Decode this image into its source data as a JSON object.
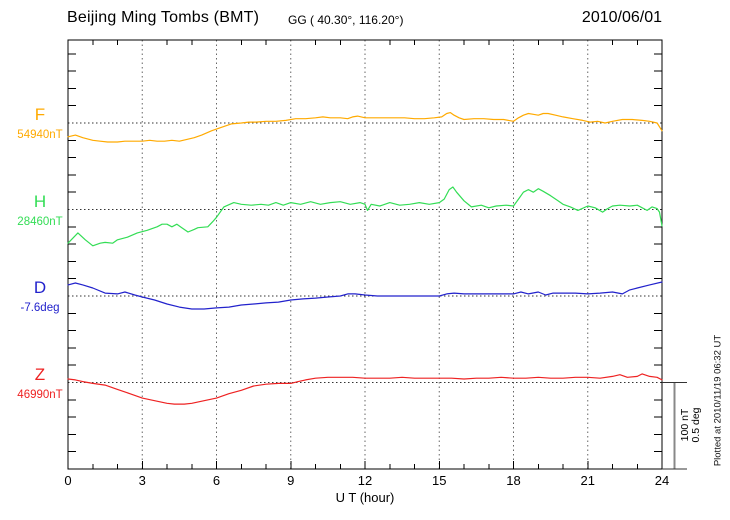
{
  "header": {
    "station_title": "Beijing Ming Tombs (BMT)",
    "coordinates": "GG ( 40.30°, 116.20°)",
    "date": "2010/06/01"
  },
  "chart_data": {
    "type": "line",
    "title": "Beijing Ming Tombs (BMT) magnetogram 2010/06/01",
    "xlabel": "U T (hour)",
    "x_range": [
      0,
      24
    ],
    "x_ticks": [
      0,
      3,
      6,
      9,
      12,
      15,
      18,
      21,
      24
    ],
    "grid": "dotted vertical lines every 3 h; dotted horizontal baseline at each component reference value",
    "legend_position": "left margin, one colored label per trace",
    "scale_bar": {
      "nT_label": "100 nT",
      "deg_label": "0.5 deg",
      "nT_per_bar": 100,
      "deg_per_bar": 0.5
    },
    "plotted_note": "Plotted at 2010/11/19 06:32 UT",
    "series": [
      {
        "name": "F",
        "label": "F",
        "ref_label": "54940nT",
        "ref_value": 54940,
        "unit": "nT",
        "color": "#FFAA00",
        "points": [
          [
            0,
            -16
          ],
          [
            0.3,
            -14
          ],
          [
            0.6,
            -17
          ],
          [
            1,
            -20
          ],
          [
            1.3,
            -21
          ],
          [
            1.6,
            -22
          ],
          [
            2,
            -22
          ],
          [
            2.3,
            -21
          ],
          [
            2.6,
            -21
          ],
          [
            3,
            -21
          ],
          [
            3.3,
            -20
          ],
          [
            3.6,
            -21
          ],
          [
            3.9,
            -21
          ],
          [
            4.2,
            -20
          ],
          [
            4.5,
            -21
          ],
          [
            4.8,
            -19
          ],
          [
            5.1,
            -17
          ],
          [
            5.4,
            -14
          ],
          [
            5.8,
            -9
          ],
          [
            6.2,
            -5
          ],
          [
            6.6,
            -1
          ],
          [
            7,
            0
          ],
          [
            7.3,
            1
          ],
          [
            7.6,
            1
          ],
          [
            8,
            2
          ],
          [
            8.4,
            2
          ],
          [
            8.8,
            3
          ],
          [
            9.2,
            5
          ],
          [
            9.6,
            5
          ],
          [
            10,
            6
          ],
          [
            10.3,
            7
          ],
          [
            10.6,
            6
          ],
          [
            11,
            6
          ],
          [
            11.3,
            5
          ],
          [
            11.5,
            7
          ],
          [
            11.7,
            8
          ],
          [
            12,
            6
          ],
          [
            12.4,
            6
          ],
          [
            12.8,
            6
          ],
          [
            13.2,
            6
          ],
          [
            13.6,
            6
          ],
          [
            14,
            5
          ],
          [
            14.4,
            5
          ],
          [
            14.8,
            6
          ],
          [
            15.1,
            7
          ],
          [
            15.3,
            11
          ],
          [
            15.45,
            12
          ],
          [
            15.6,
            9
          ],
          [
            15.8,
            6
          ],
          [
            16,
            4
          ],
          [
            16.4,
            5
          ],
          [
            16.8,
            5
          ],
          [
            17.2,
            4
          ],
          [
            17.6,
            4
          ],
          [
            18,
            2
          ],
          [
            18.2,
            6
          ],
          [
            18.4,
            9
          ],
          [
            18.6,
            11
          ],
          [
            18.8,
            10
          ],
          [
            19,
            9
          ],
          [
            19.2,
            11
          ],
          [
            19.4,
            11
          ],
          [
            19.7,
            9
          ],
          [
            20,
            7
          ],
          [
            20.4,
            5
          ],
          [
            20.8,
            3
          ],
          [
            21.1,
            1
          ],
          [
            21.4,
            2
          ],
          [
            21.7,
            0
          ],
          [
            22,
            2
          ],
          [
            22.4,
            4
          ],
          [
            22.8,
            4
          ],
          [
            23.2,
            3
          ],
          [
            23.5,
            2
          ],
          [
            23.8,
            0
          ],
          [
            24,
            -9
          ]
        ]
      },
      {
        "name": "H",
        "label": "H",
        "ref_label": "28460nT",
        "ref_value": 28460,
        "unit": "nT",
        "color": "#33DD55",
        "points": [
          [
            0,
            -39
          ],
          [
            0.4,
            -27
          ],
          [
            0.7,
            -35
          ],
          [
            1,
            -42
          ],
          [
            1.3,
            -39
          ],
          [
            1.5,
            -38
          ],
          [
            1.8,
            -39
          ],
          [
            2,
            -35
          ],
          [
            2.4,
            -32
          ],
          [
            2.8,
            -27
          ],
          [
            3.2,
            -24
          ],
          [
            3.6,
            -20
          ],
          [
            3.8,
            -17
          ],
          [
            4,
            -17
          ],
          [
            4.2,
            -20
          ],
          [
            4.4,
            -17
          ],
          [
            4.6,
            -21
          ],
          [
            4.85,
            -26
          ],
          [
            5.1,
            -23
          ],
          [
            5.25,
            -21
          ],
          [
            5.65,
            -20
          ],
          [
            5.85,
            -14
          ],
          [
            6,
            -9
          ],
          [
            6.3,
            3
          ],
          [
            6.7,
            8
          ],
          [
            7,
            6
          ],
          [
            7.4,
            5
          ],
          [
            7.8,
            6
          ],
          [
            8.1,
            5
          ],
          [
            8.4,
            8
          ],
          [
            8.7,
            5
          ],
          [
            9,
            8
          ],
          [
            9.4,
            6
          ],
          [
            9.8,
            9
          ],
          [
            10.2,
            6
          ],
          [
            10.6,
            8
          ],
          [
            11,
            9
          ],
          [
            11.4,
            6
          ],
          [
            11.8,
            8
          ],
          [
            12,
            6
          ],
          [
            12.1,
            -1
          ],
          [
            12.25,
            6
          ],
          [
            12.6,
            4
          ],
          [
            13,
            8
          ],
          [
            13.4,
            5
          ],
          [
            13.8,
            6
          ],
          [
            14.2,
            8
          ],
          [
            14.6,
            6
          ],
          [
            15,
            8
          ],
          [
            15.2,
            12
          ],
          [
            15.4,
            23
          ],
          [
            15.55,
            26
          ],
          [
            15.7,
            20
          ],
          [
            16,
            10
          ],
          [
            16.3,
            3
          ],
          [
            16.7,
            5
          ],
          [
            17,
            2
          ],
          [
            17.3,
            4
          ],
          [
            17.7,
            5
          ],
          [
            18,
            4
          ],
          [
            18.2,
            12
          ],
          [
            18.4,
            20
          ],
          [
            18.6,
            23
          ],
          [
            18.8,
            20
          ],
          [
            19,
            24
          ],
          [
            19.2,
            21
          ],
          [
            19.5,
            16
          ],
          [
            19.8,
            10
          ],
          [
            20,
            6
          ],
          [
            20.3,
            3
          ],
          [
            20.6,
            -1
          ],
          [
            21,
            4
          ],
          [
            21.3,
            2
          ],
          [
            21.6,
            -3
          ],
          [
            21.8,
            1
          ],
          [
            22,
            4
          ],
          [
            22.3,
            5
          ],
          [
            22.7,
            4
          ],
          [
            23,
            5
          ],
          [
            23.2,
            2
          ],
          [
            23.4,
            -1
          ],
          [
            23.6,
            3
          ],
          [
            23.8,
            1
          ],
          [
            23.9,
            -3
          ],
          [
            24,
            -19
          ]
        ]
      },
      {
        "name": "D",
        "label": "D",
        "ref_label": "-7.6deg",
        "ref_value": -7.6,
        "unit": "deg",
        "color": "#2222CC",
        "points": [
          [
            0,
            0.064
          ],
          [
            0.3,
            0.075
          ],
          [
            0.6,
            0.064
          ],
          [
            1,
            0.046
          ],
          [
            1.5,
            0.017
          ],
          [
            2,
            0.012
          ],
          [
            2.3,
            0.023
          ],
          [
            2.7,
            0.006
          ],
          [
            3,
            -0.006
          ],
          [
            3.5,
            -0.023
          ],
          [
            4,
            -0.046
          ],
          [
            4.5,
            -0.064
          ],
          [
            5,
            -0.075
          ],
          [
            5.5,
            -0.075
          ],
          [
            6,
            -0.069
          ],
          [
            6.5,
            -0.064
          ],
          [
            7,
            -0.052
          ],
          [
            7.5,
            -0.046
          ],
          [
            8,
            -0.04
          ],
          [
            8.5,
            -0.035
          ],
          [
            9,
            -0.023
          ],
          [
            9.5,
            -0.017
          ],
          [
            10,
            -0.012
          ],
          [
            10.5,
            -0.006
          ],
          [
            11,
            0
          ],
          [
            11.3,
            0.012
          ],
          [
            11.6,
            0.012
          ],
          [
            12,
            0.006
          ],
          [
            12.5,
            0
          ],
          [
            13,
            0
          ],
          [
            13.5,
            0
          ],
          [
            14,
            0
          ],
          [
            14.5,
            0
          ],
          [
            15,
            0
          ],
          [
            15.3,
            0.012
          ],
          [
            15.6,
            0.017
          ],
          [
            16,
            0.012
          ],
          [
            16.5,
            0.012
          ],
          [
            17,
            0.012
          ],
          [
            17.5,
            0.012
          ],
          [
            18,
            0.012
          ],
          [
            18.3,
            0.023
          ],
          [
            18.6,
            0.012
          ],
          [
            19,
            0.023
          ],
          [
            19.3,
            0.006
          ],
          [
            19.6,
            0.017
          ],
          [
            20,
            0.017
          ],
          [
            20.5,
            0.017
          ],
          [
            21,
            0.012
          ],
          [
            21.5,
            0.017
          ],
          [
            22,
            0.023
          ],
          [
            22.4,
            0.012
          ],
          [
            22.7,
            0.035
          ],
          [
            23,
            0.046
          ],
          [
            23.5,
            0.064
          ],
          [
            24,
            0.081
          ]
        ]
      },
      {
        "name": "Z",
        "label": "Z",
        "ref_label": "46990nT",
        "ref_value": 46990,
        "unit": "nT",
        "color": "#EE2222",
        "points": [
          [
            0,
            4
          ],
          [
            0.3,
            3
          ],
          [
            0.6,
            1
          ],
          [
            1,
            -1
          ],
          [
            1.5,
            -3
          ],
          [
            2,
            -8
          ],
          [
            2.5,
            -13
          ],
          [
            3,
            -18
          ],
          [
            3.5,
            -21
          ],
          [
            4,
            -24
          ],
          [
            4.3,
            -25
          ],
          [
            4.7,
            -25
          ],
          [
            5,
            -24
          ],
          [
            5.5,
            -21
          ],
          [
            6,
            -18
          ],
          [
            6.5,
            -13
          ],
          [
            7,
            -9
          ],
          [
            7.5,
            -4
          ],
          [
            8,
            -2
          ],
          [
            8.5,
            -1
          ],
          [
            9,
            -1
          ],
          [
            9.3,
            1
          ],
          [
            9.6,
            3
          ],
          [
            10,
            5
          ],
          [
            10.5,
            6
          ],
          [
            11,
            6
          ],
          [
            11.5,
            6
          ],
          [
            12,
            5
          ],
          [
            12.5,
            5
          ],
          [
            13,
            5
          ],
          [
            13.5,
            6
          ],
          [
            14,
            5
          ],
          [
            14.5,
            5
          ],
          [
            15,
            5
          ],
          [
            15.5,
            5
          ],
          [
            16,
            4
          ],
          [
            16.5,
            5
          ],
          [
            17,
            5
          ],
          [
            17.5,
            6
          ],
          [
            18,
            5
          ],
          [
            18.5,
            5
          ],
          [
            19,
            6
          ],
          [
            19.5,
            5
          ],
          [
            20,
            5
          ],
          [
            20.5,
            6
          ],
          [
            21,
            6
          ],
          [
            21.5,
            5
          ],
          [
            22,
            7
          ],
          [
            22.3,
            9
          ],
          [
            22.6,
            6
          ],
          [
            23,
            7
          ],
          [
            23.2,
            10
          ],
          [
            23.5,
            7
          ],
          [
            23.8,
            6
          ],
          [
            24,
            3
          ]
        ]
      }
    ]
  }
}
